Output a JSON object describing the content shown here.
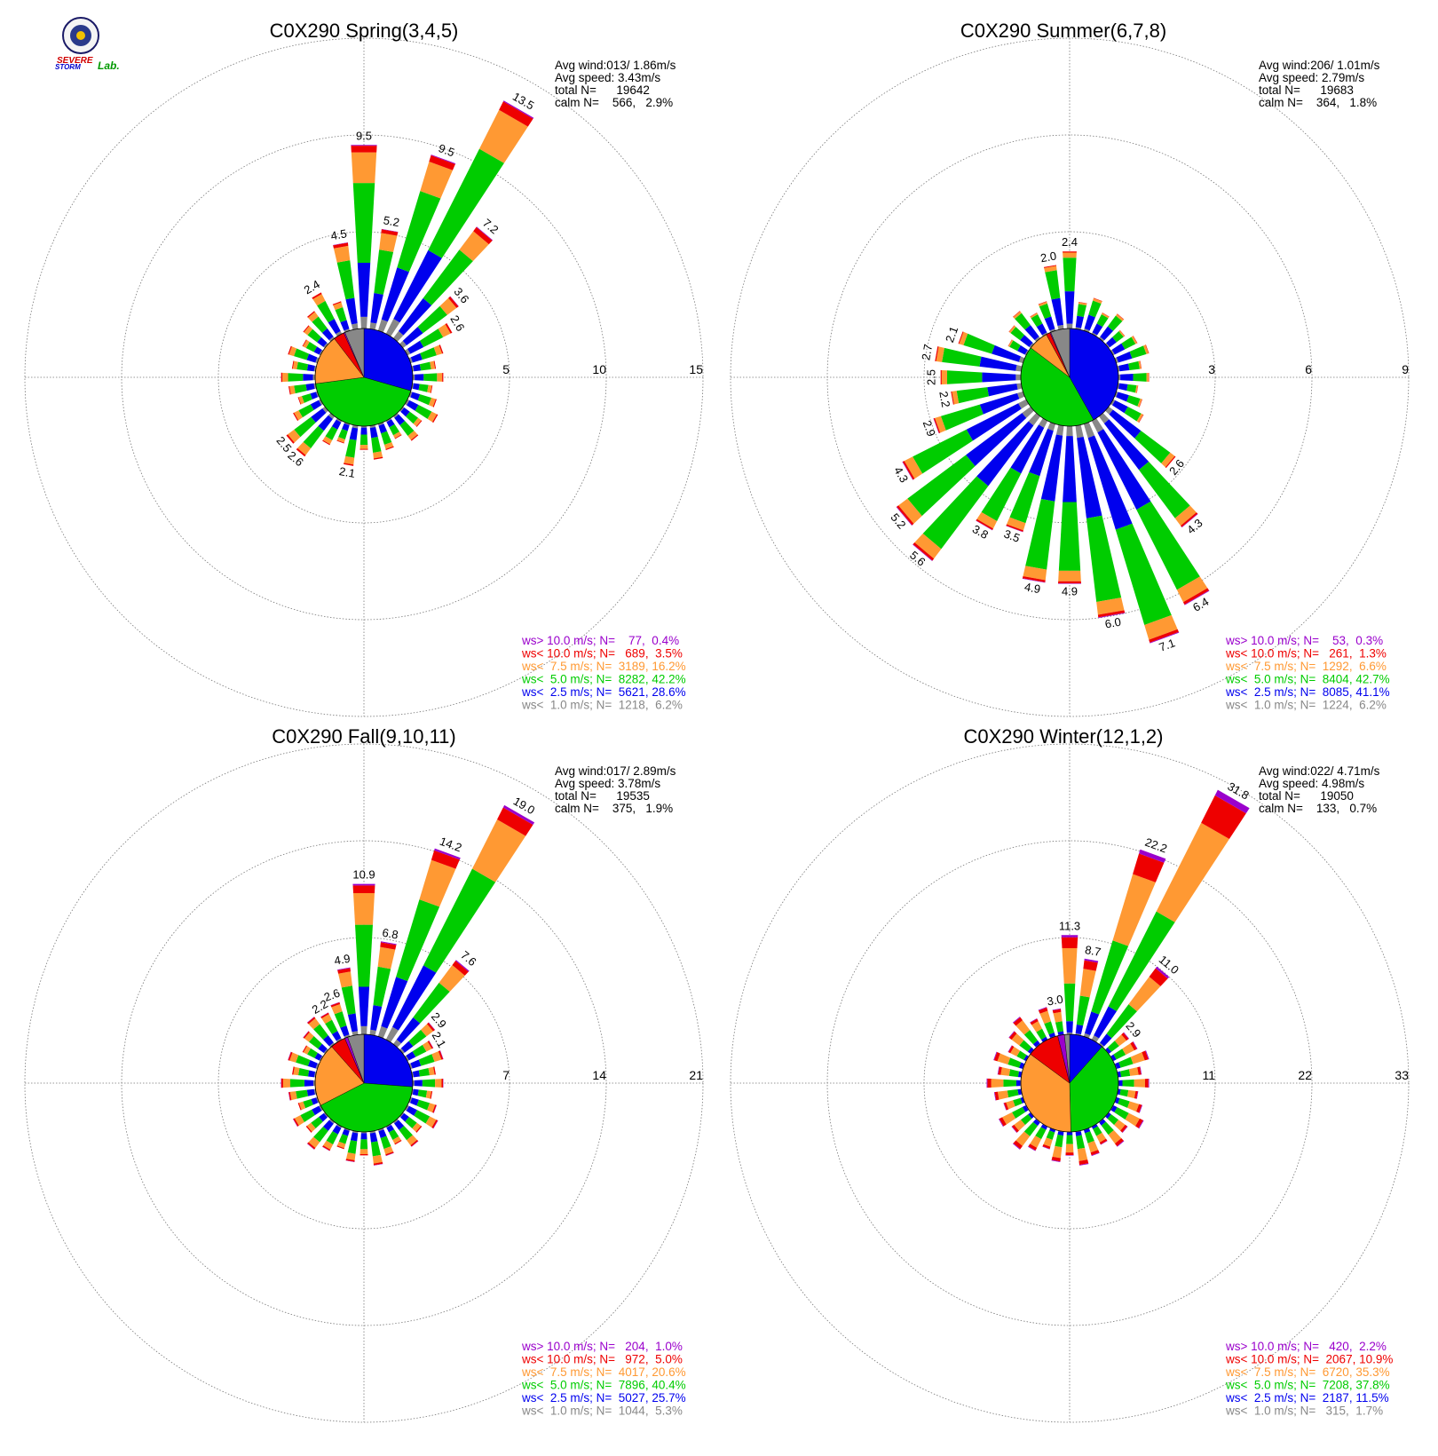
{
  "logo": {
    "line1": "SEVERE",
    "line2": "STORM",
    "line3": "Lab.",
    "colors": {
      "severe": "#d00000",
      "storm": "#0000cc",
      "lab": "#009900",
      "seal": "#1a1a66"
    }
  },
  "colors": {
    "gt10": "#9a00cc",
    "lt10": "#ee0000",
    "lt75": "#ff9933",
    "lt5": "#00cc00",
    "lt25": "#0000ee",
    "lt1": "#888888",
    "grid": "#777777"
  },
  "chart_data": [
    {
      "type": "wind-rose",
      "title": "C0X290 Spring(3,4,5)",
      "stats": {
        "avg_wind": "Avg wind:013/ 1.86m/s",
        "avg_speed": "Avg speed: 3.43m/s",
        "total": "total N=      19642",
        "calm": "calm N=    566,   2.9%"
      },
      "ring_labels": [
        "5",
        "10",
        "15"
      ],
      "rmax": 15,
      "bar_values": [
        {
          "dir": 0,
          "value": 9.5,
          "label": "9.5"
        },
        {
          "dir": 10,
          "value": 5.2,
          "label": "5.2"
        },
        {
          "dir": 20,
          "value": 9.5,
          "label": "9.5"
        },
        {
          "dir": 30,
          "value": 13.5,
          "label": "13.5"
        },
        {
          "dir": 40,
          "value": 7.2,
          "label": "7.2"
        },
        {
          "dir": 50,
          "value": 3.6,
          "label": "3.6"
        },
        {
          "dir": 60,
          "value": 2.6,
          "label": "2.6"
        },
        {
          "dir": 190,
          "value": 2.1,
          "label": "2.1"
        },
        {
          "dir": 220,
          "value": 2.6,
          "label": "2.6"
        },
        {
          "dir": 230,
          "value": 2.5,
          "label": "2.5"
        },
        {
          "dir": 330,
          "value": 2.4,
          "label": "2.4"
        },
        {
          "dir": 350,
          "value": 4.5,
          "label": "4.5"
        }
      ],
      "speed_classes": [
        {
          "key": "gt10",
          "text": "ws> 10.0 m/s; N=    77,  0.4%"
        },
        {
          "key": "lt10",
          "text": "ws< 10.0 m/s; N=   689,  3.5%"
        },
        {
          "key": "lt75",
          "text": "ws<  7.5 m/s; N=  3189, 16.2%"
        },
        {
          "key": "lt5",
          "text": "ws<  5.0 m/s; N=  8282, 42.2%"
        },
        {
          "key": "lt25",
          "text": "ws<  2.5 m/s; N=  5621, 28.6%"
        },
        {
          "key": "lt1",
          "text": "ws<  1.0 m/s; N=  1218,  6.2%"
        }
      ],
      "class_pct": [
        0.4,
        3.5,
        16.2,
        42.2,
        28.6,
        6.2
      ]
    },
    {
      "type": "wind-rose",
      "title": "C0X290 Summer(6,7,8)",
      "stats": {
        "avg_wind": "Avg wind:206/ 1.01m/s",
        "avg_speed": "Avg speed: 2.79m/s",
        "total": "total N=      19683",
        "calm": "calm N=    364,   1.8%"
      },
      "ring_labels": [
        "3",
        "6",
        "9"
      ],
      "rmax": 9,
      "bar_values": [
        {
          "dir": 0,
          "value": 2.4,
          "label": "2.4"
        },
        {
          "dir": 130,
          "value": 2.6,
          "label": "2.6"
        },
        {
          "dir": 140,
          "value": 4.3,
          "label": "4.3"
        },
        {
          "dir": 150,
          "value": 6.4,
          "label": "6.4"
        },
        {
          "dir": 160,
          "value": 7.1,
          "label": "7.1"
        },
        {
          "dir": 170,
          "value": 6.0,
          "label": "6.0"
        },
        {
          "dir": 180,
          "value": 4.9,
          "label": "4.9"
        },
        {
          "dir": 190,
          "value": 4.9,
          "label": "4.9"
        },
        {
          "dir": 200,
          "value": 3.5,
          "label": "3.5"
        },
        {
          "dir": 210,
          "value": 3.8,
          "label": "3.8"
        },
        {
          "dir": 220,
          "value": 5.6,
          "label": "5.6"
        },
        {
          "dir": 230,
          "value": 5.2,
          "label": "5.2"
        },
        {
          "dir": 240,
          "value": 4.3,
          "label": "4.3"
        },
        {
          "dir": 250,
          "value": 2.9,
          "label": "2.9"
        },
        {
          "dir": 260,
          "value": 2.2,
          "label": "2.2"
        },
        {
          "dir": 270,
          "value": 2.5,
          "label": "2.5"
        },
        {
          "dir": 280,
          "value": 2.7,
          "label": "2.7"
        },
        {
          "dir": 290,
          "value": 2.1,
          "label": "2.1"
        },
        {
          "dir": 350,
          "value": 2.0,
          "label": "2.0"
        }
      ],
      "speed_classes": [
        {
          "key": "gt10",
          "text": "ws> 10.0 m/s; N=    53,  0.3%"
        },
        {
          "key": "lt10",
          "text": "ws< 10.0 m/s; N=   261,  1.3%"
        },
        {
          "key": "lt75",
          "text": "ws<  7.5 m/s; N=  1292,  6.6%"
        },
        {
          "key": "lt5",
          "text": "ws<  5.0 m/s; N=  8404, 42.7%"
        },
        {
          "key": "lt25",
          "text": "ws<  2.5 m/s; N=  8085, 41.1%"
        },
        {
          "key": "lt1",
          "text": "ws<  1.0 m/s; N=  1224,  6.2%"
        }
      ],
      "class_pct": [
        0.3,
        1.3,
        6.6,
        42.7,
        41.1,
        6.2
      ]
    },
    {
      "type": "wind-rose",
      "title": "C0X290 Fall(9,10,11)",
      "stats": {
        "avg_wind": "Avg wind:017/ 2.89m/s",
        "avg_speed": "Avg speed: 3.78m/s",
        "total": "total N=      19535",
        "calm": "calm N=    375,   1.9%"
      },
      "ring_labels": [
        "7",
        "14",
        "21"
      ],
      "rmax": 21,
      "bar_values": [
        {
          "dir": 0,
          "value": 10.9,
          "label": "10.9"
        },
        {
          "dir": 10,
          "value": 6.8,
          "label": "6.8"
        },
        {
          "dir": 20,
          "value": 14.2,
          "label": "14.2"
        },
        {
          "dir": 30,
          "value": 19.0,
          "label": "19.0"
        },
        {
          "dir": 40,
          "value": 7.6,
          "label": "7.6"
        },
        {
          "dir": 50,
          "value": 2.9,
          "label": "2.9"
        },
        {
          "dir": 60,
          "value": 2.1,
          "label": "2.1"
        },
        {
          "dir": 330,
          "value": 2.2,
          "label": "2.2"
        },
        {
          "dir": 340,
          "value": 2.6,
          "label": "2.6"
        },
        {
          "dir": 350,
          "value": 4.9,
          "label": "4.9"
        }
      ],
      "speed_classes": [
        {
          "key": "gt10",
          "text": "ws> 10.0 m/s; N=   204,  1.0%"
        },
        {
          "key": "lt10",
          "text": "ws< 10.0 m/s; N=   972,  5.0%"
        },
        {
          "key": "lt75",
          "text": "ws<  7.5 m/s; N=  4017, 20.6%"
        },
        {
          "key": "lt5",
          "text": "ws<  5.0 m/s; N=  7896, 40.4%"
        },
        {
          "key": "lt25",
          "text": "ws<  2.5 m/s; N=  5027, 25.7%"
        },
        {
          "key": "lt1",
          "text": "ws<  1.0 m/s; N=  1044,  5.3%"
        }
      ],
      "class_pct": [
        1.0,
        5.0,
        20.6,
        40.4,
        25.7,
        5.3
      ]
    },
    {
      "type": "wind-rose",
      "title": "C0X290 Winter(12,1,2)",
      "stats": {
        "avg_wind": "Avg wind:022/ 4.71m/s",
        "avg_speed": "Avg speed: 4.98m/s",
        "total": "total N=      19050",
        "calm": "calm N=    133,   0.7%"
      },
      "ring_labels": [
        "11",
        "22",
        "33"
      ],
      "rmax": 33,
      "bar_values": [
        {
          "dir": 0,
          "value": 11.3,
          "label": "11.3"
        },
        {
          "dir": 10,
          "value": 8.7,
          "label": "8.7"
        },
        {
          "dir": 20,
          "value": 22.2,
          "label": "22.2"
        },
        {
          "dir": 30,
          "value": 31.8,
          "label": "31.8"
        },
        {
          "dir": 40,
          "value": 11.0,
          "label": "11.0"
        },
        {
          "dir": 50,
          "value": 2.9,
          "label": "2.9"
        },
        {
          "dir": 350,
          "value": 3.0,
          "label": "3.0"
        }
      ],
      "speed_classes": [
        {
          "key": "gt10",
          "text": "ws> 10.0 m/s; N=   420,  2.2%"
        },
        {
          "key": "lt10",
          "text": "ws< 10.0 m/s; N=  2067, 10.9%"
        },
        {
          "key": "lt75",
          "text": "ws<  7.5 m/s; N=  6720, 35.3%"
        },
        {
          "key": "lt5",
          "text": "ws<  5.0 m/s; N=  7208, 37.8%"
        },
        {
          "key": "lt25",
          "text": "ws<  2.5 m/s; N=  2187, 11.5%"
        },
        {
          "key": "lt1",
          "text": "ws<  1.0 m/s; N=   315,  1.7%"
        }
      ],
      "class_pct": [
        2.2,
        10.9,
        35.3,
        37.8,
        11.5,
        1.7
      ]
    }
  ]
}
